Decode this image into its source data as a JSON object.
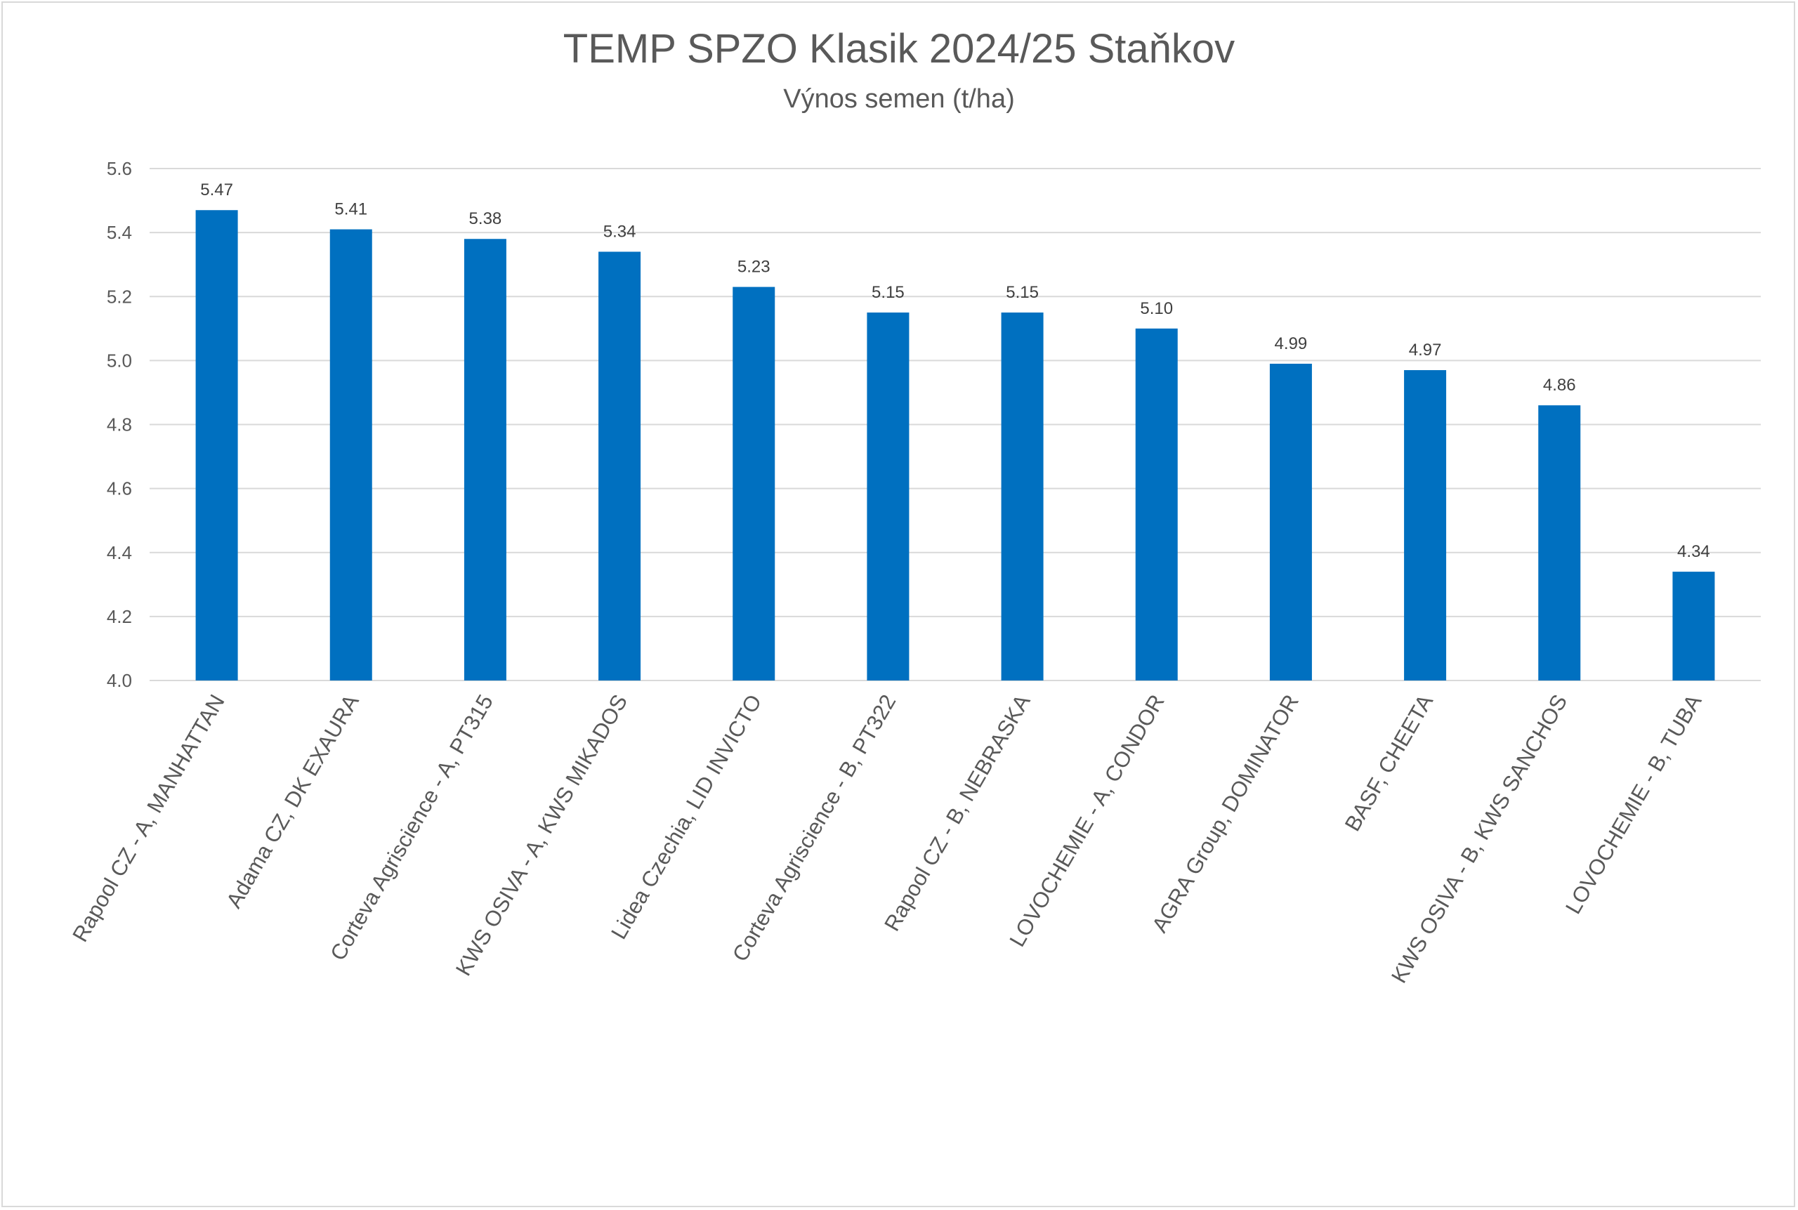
{
  "chart_data": {
    "type": "bar",
    "title": "TEMP SPZO Klasik 2024/25 Staňkov",
    "subtitle": "Výnos semen (t/ha)",
    "xlabel": "",
    "ylabel": "",
    "ylim": [
      4.0,
      5.6
    ],
    "yticks": [
      "4.0",
      "4.2",
      "4.4",
      "4.6",
      "4.8",
      "5.0",
      "5.2",
      "5.4",
      "5.6"
    ],
    "grid": true,
    "legend": "none",
    "bar_color": "#0070c0",
    "categories": [
      "Rapool CZ - A, MANHATTAN",
      "Adama CZ, DK EXAURA",
      "Corteva Agriscience - A, PT315",
      "KWS OSIVA - A, KWS MIKADOS",
      "Lidea Czechia, LID INVICTO",
      "Corteva Agriscience - B, PT322",
      "Rapool CZ - B, NEBRASKA",
      "LOVOCHEMIE - A, CONDOR",
      "AGRA Group, DOMINATOR",
      "BASF, CHEETA",
      "KWS OSIVA - B, KWS SANCHOS",
      "LOVOCHEMIE - B, TUBA"
    ],
    "values": [
      5.47,
      5.41,
      5.38,
      5.34,
      5.23,
      5.15,
      5.15,
      5.1,
      4.99,
      4.97,
      4.86,
      4.34
    ],
    "data_labels": [
      "5.47",
      "5.41",
      "5.38",
      "5.34",
      "5.23",
      "5.15",
      "5.15",
      "5.10",
      "4.99",
      "4.97",
      "4.86",
      "4.34"
    ]
  }
}
